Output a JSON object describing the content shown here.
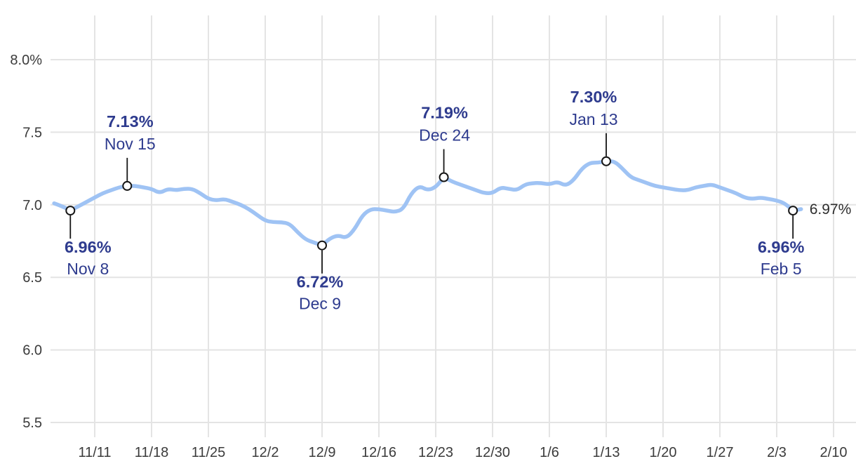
{
  "chart_data": {
    "type": "line",
    "title": "",
    "xlabel": "",
    "ylabel": "",
    "grid": true,
    "legend_position": "none",
    "ylim": [
      5.4,
      8.3
    ],
    "y_axis": {
      "ticks": [
        {
          "label": "8.0%",
          "value": 8.0
        },
        {
          "label": "7.5",
          "value": 7.5
        },
        {
          "label": "7.0",
          "value": 7.0
        },
        {
          "label": "6.5",
          "value": 6.5
        },
        {
          "label": "6.0",
          "value": 6.0
        },
        {
          "label": "5.5",
          "value": 5.5
        }
      ]
    },
    "x_axis": {
      "ticks": [
        {
          "label": "11/11",
          "day": 5
        },
        {
          "label": "11/18",
          "day": 12
        },
        {
          "label": "11/25",
          "day": 19
        },
        {
          "label": "12/2",
          "day": 26
        },
        {
          "label": "12/9",
          "day": 33
        },
        {
          "label": "12/16",
          "day": 40
        },
        {
          "label": "12/23",
          "day": 47
        },
        {
          "label": "12/30",
          "day": 54
        },
        {
          "label": "1/6",
          "day": 61
        },
        {
          "label": "1/13",
          "day": 68
        },
        {
          "label": "1/20",
          "day": 75
        },
        {
          "label": "1/27",
          "day": 82
        },
        {
          "label": "2/3",
          "day": 89
        },
        {
          "label": "2/10",
          "day": 96
        }
      ]
    },
    "values": [
      7.01,
      6.99,
      6.96,
      6.99,
      7.02,
      7.05,
      7.08,
      7.1,
      7.12,
      7.13,
      7.13,
      7.12,
      7.11,
      7.08,
      7.11,
      7.1,
      7.11,
      7.11,
      7.08,
      7.04,
      7.03,
      7.04,
      7.02,
      7.0,
      6.97,
      6.93,
      6.89,
      6.88,
      6.88,
      6.87,
      6.81,
      6.76,
      6.74,
      6.72,
      6.77,
      6.79,
      6.77,
      6.83,
      6.93,
      6.97,
      6.97,
      6.96,
      6.95,
      6.97,
      7.08,
      7.13,
      7.1,
      7.12,
      7.19,
      7.16,
      7.14,
      7.12,
      7.1,
      7.08,
      7.08,
      7.12,
      7.11,
      7.1,
      7.14,
      7.15,
      7.15,
      7.14,
      7.16,
      7.13,
      7.17,
      7.25,
      7.29,
      7.29,
      7.3,
      7.3,
      7.25,
      7.19,
      7.17,
      7.15,
      7.13,
      7.12,
      7.11,
      7.1,
      7.1,
      7.12,
      7.13,
      7.14,
      7.12,
      7.1,
      7.08,
      7.05,
      7.04,
      7.05,
      7.04,
      7.03,
      7.01,
      6.96,
      6.97
    ],
    "annotations": [
      {
        "value_label": "6.96%",
        "date_label": "Nov 8",
        "value": 6.96,
        "day": 2,
        "side": "below",
        "dx": 25
      },
      {
        "value_label": "7.13%",
        "date_label": "Nov 15",
        "value": 7.13,
        "day": 9,
        "side": "above",
        "dx": 4
      },
      {
        "value_label": "6.72%",
        "date_label": "Dec 9",
        "value": 6.72,
        "day": 33,
        "side": "below",
        "dx": -3
      },
      {
        "value_label": "7.19%",
        "date_label": "Dec 24",
        "value": 7.19,
        "day": 48,
        "side": "above",
        "dx": 1
      },
      {
        "value_label": "7.30%",
        "date_label": "Jan 13",
        "value": 7.3,
        "day": 68,
        "side": "above",
        "dx": -18
      },
      {
        "value_label": "6.96%",
        "date_label": "Feb 5",
        "value": 6.96,
        "day": 91,
        "side": "below",
        "dx": -17
      }
    ],
    "latest": {
      "label": "6.97%",
      "value": 6.97
    }
  },
  "colors": {
    "line": "#9fc3f4",
    "annotation_text": "#2e3b8e",
    "tick_text": "#3b3b3b",
    "grid": "#e4e4e4",
    "marker_fill": "#ffffff",
    "marker_stroke": "#161616",
    "stem": "#161616",
    "latest_text": "#2e2e2e",
    "background": "#ffffff"
  }
}
